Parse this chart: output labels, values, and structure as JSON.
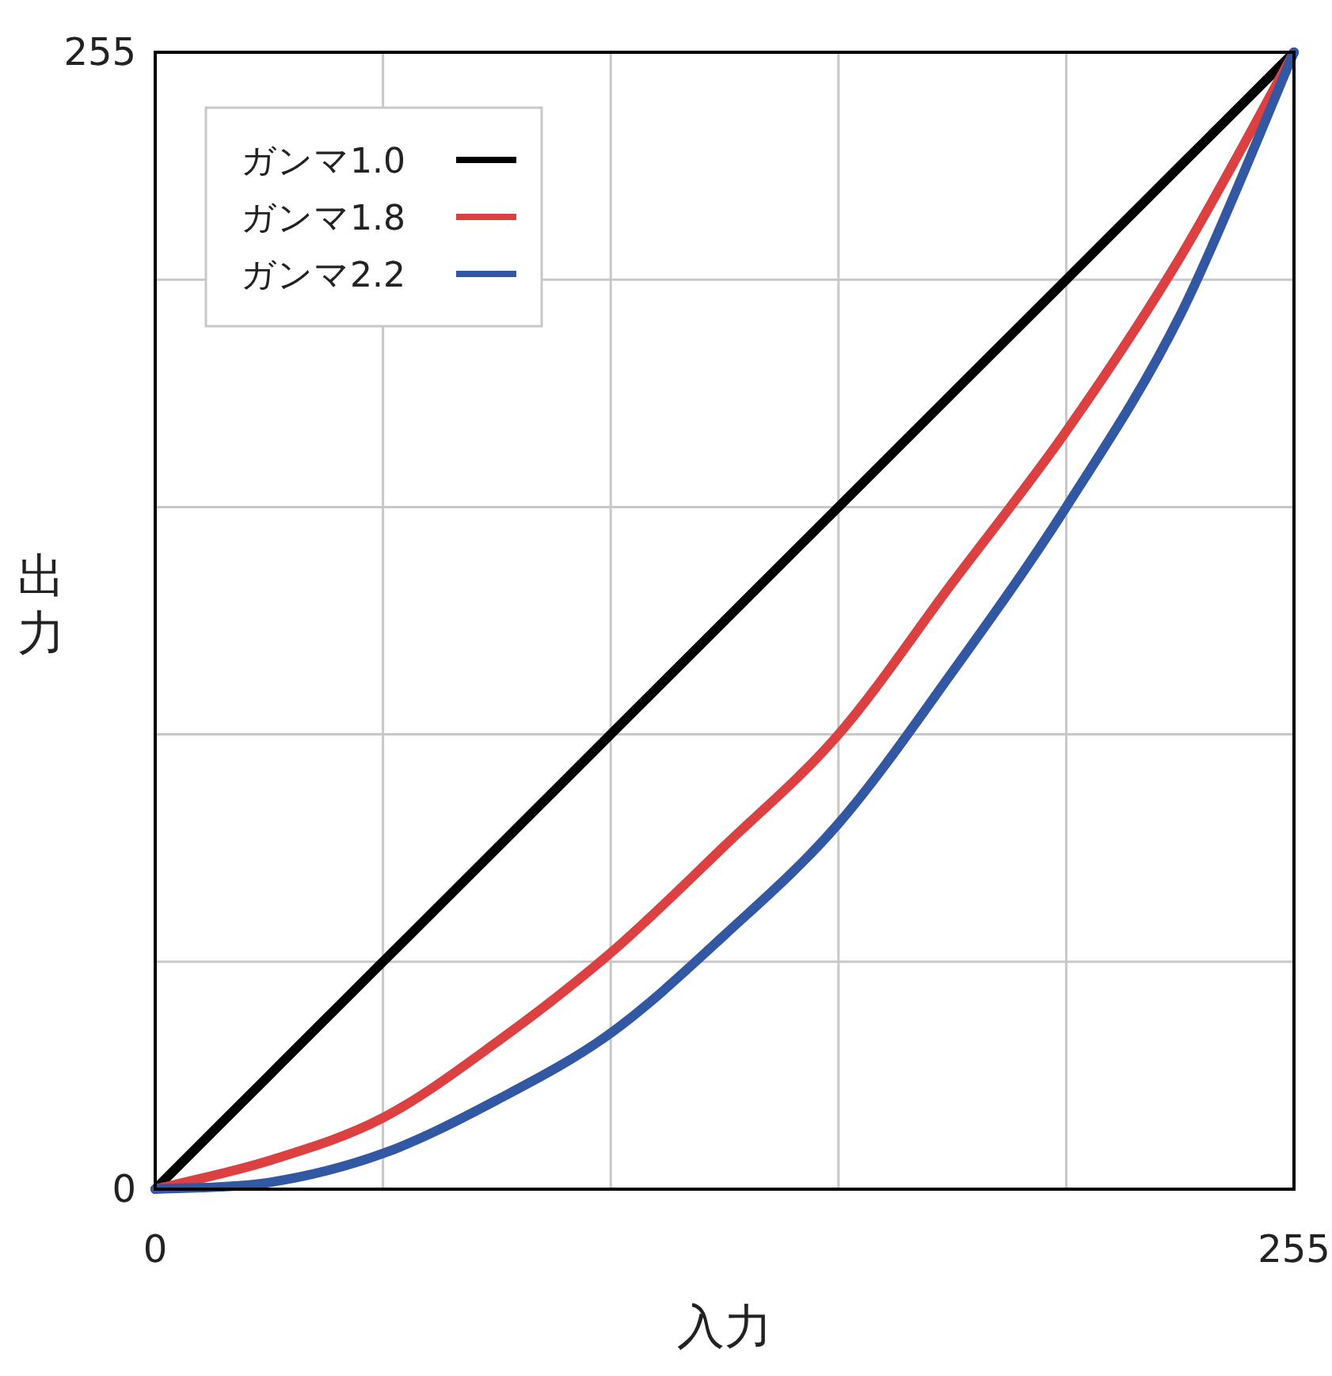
{
  "chart_data": {
    "type": "line",
    "xlabel": "入力",
    "ylabel": "出力",
    "x": [
      0,
      25.5,
      51,
      76.5,
      102,
      127.5,
      153,
      178.5,
      204,
      229.5,
      255
    ],
    "series": [
      {
        "name": "ガンマ1.0",
        "color": "#000000",
        "values": [
          0,
          25.5,
          51,
          76.5,
          102,
          127.5,
          153,
          178.5,
          204,
          229.5,
          255
        ]
      },
      {
        "name": "ガンマ1.8",
        "color": "#dc4040",
        "values": [
          0,
          6.4,
          16,
          33,
          53,
          77,
          102,
          136,
          170,
          209,
          255
        ]
      },
      {
        "name": "ガンマ2.2",
        "color": "#3258a4",
        "values": [
          0,
          1.5,
          8,
          20,
          35,
          57,
          82,
          116,
          153,
          196,
          255
        ]
      }
    ],
    "xlim": [
      0,
      255
    ],
    "ylim": [
      0,
      255
    ],
    "xticks": [
      0,
      {
        "value": 51,
        "label": null
      },
      {
        "value": 102,
        "label": null
      },
      {
        "value": 153,
        "label": null
      },
      {
        "value": 204,
        "label": null
      },
      255
    ],
    "yticks": [
      0,
      {
        "value": 51,
        "label": null
      },
      {
        "value": 102,
        "label": null
      },
      {
        "value": 153,
        "label": null
      },
      {
        "value": 204,
        "label": null
      },
      255
    ],
    "grid": true,
    "legend": "top left",
    "line_style": "solid",
    "marker": "none"
  }
}
